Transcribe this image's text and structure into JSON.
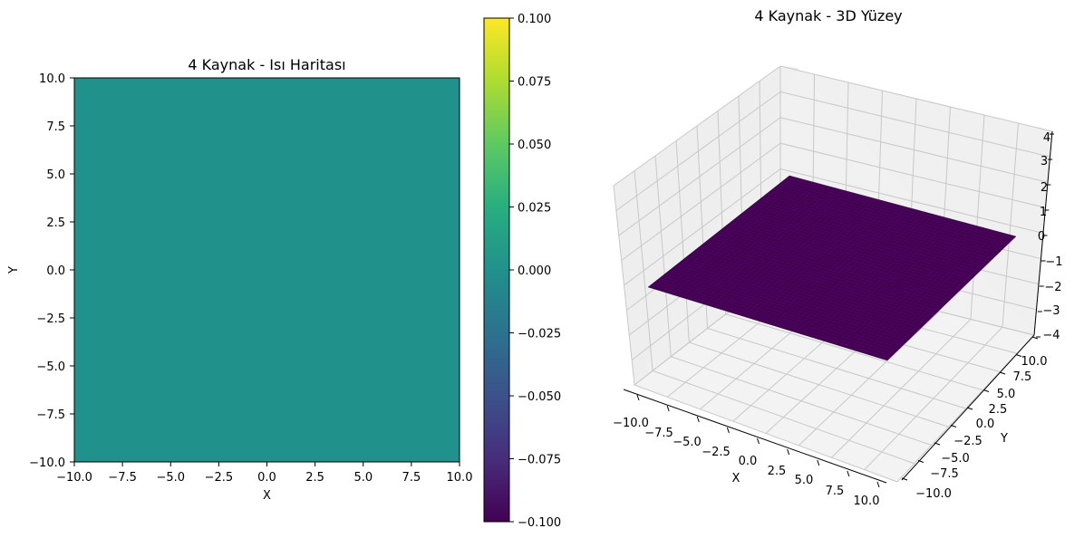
{
  "chart_data": [
    {
      "type": "heatmap",
      "title": "4 Kaynak - Isı Haritası",
      "xlabel": "X",
      "ylabel": "Y",
      "xlim": [
        -10,
        10
      ],
      "ylim": [
        -10,
        10
      ],
      "xticks": [
        "−10.0",
        "−7.5",
        "−5.0",
        "−2.5",
        "0.0",
        "2.5",
        "5.0",
        "7.5",
        "10.0"
      ],
      "yticks": [
        "10.0",
        "7.5",
        "5.0",
        "2.5",
        "0.0",
        "−2.5",
        "−5.0",
        "−7.5",
        "−10.0"
      ],
      "values": [
        [
          0.0
        ]
      ],
      "value": 0.0,
      "colormap": "viridis",
      "fill_color": "#21918c",
      "colorbar": {
        "range": [
          -0.1,
          0.1
        ],
        "ticks": [
          "0.100",
          "0.075",
          "0.050",
          "0.025",
          "0.000",
          "−0.025",
          "−0.050",
          "−0.075",
          "−0.100"
        ]
      }
    },
    {
      "type": "surface",
      "title": "4 Kaynak - 3D Yüzey",
      "xlabel": "X",
      "ylabel": "Y",
      "zlabel": "",
      "xlim": [
        -10,
        10
      ],
      "ylim": [
        -10,
        10
      ],
      "zlim": [
        -4,
        4
      ],
      "xticks": [
        "−10.0",
        "−7.5",
        "−5.0",
        "−2.5",
        "0.0",
        "2.5",
        "5.0",
        "7.5",
        "10.0"
      ],
      "yticks": [
        "−10.0",
        "−7.5",
        "−5.0",
        "−2.5",
        "0.0",
        "2.5",
        "5.0",
        "7.5",
        "10.0"
      ],
      "zticks": [
        "4",
        "3",
        "2",
        "1",
        "0",
        "−1",
        "−2",
        "−3",
        "−4"
      ],
      "z_value": 0.0,
      "surface_color": "#440154"
    }
  ]
}
